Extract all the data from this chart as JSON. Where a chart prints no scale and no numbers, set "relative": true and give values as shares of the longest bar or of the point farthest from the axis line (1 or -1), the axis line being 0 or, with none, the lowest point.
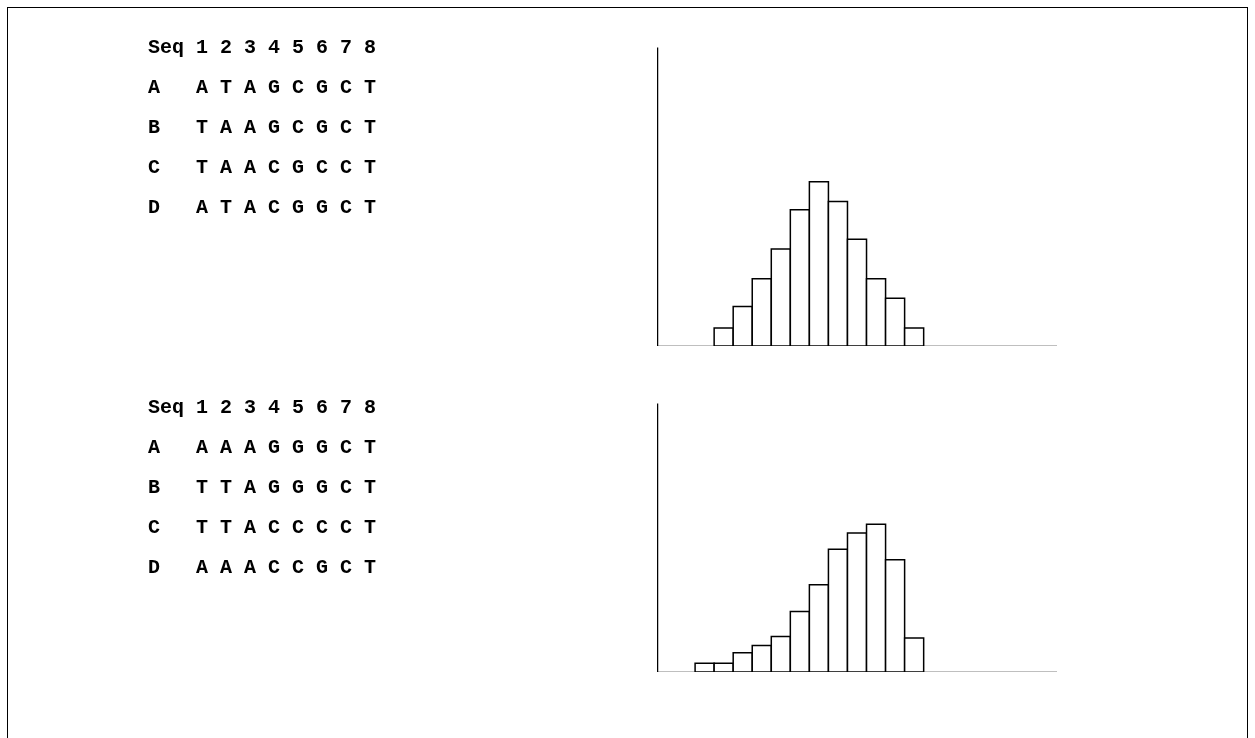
{
  "chart_data": [
    {
      "type": "other",
      "annotations": [
        "Seq 1 2 3 4 5 6 7 8",
        "A   A T A G C G C T",
        "B   T A A G C G C T",
        "C   T A A C G C C T",
        "D   A T A C G G C T"
      ]
    },
    {
      "type": "bar",
      "relative": true,
      "color": "#ffffff",
      "categories": [
        null,
        null,
        null,
        null,
        null,
        null,
        null,
        null,
        null,
        null,
        null
      ],
      "values": [
        0.11,
        0.24,
        0.41,
        0.59,
        0.83,
        1,
        0.88,
        0.65,
        0.41,
        0.29,
        0.11
      ]
    },
    {
      "type": "other",
      "annotations": [
        "Seq 1 2 3 4 5 6 7 8",
        "A   A A A G G G C T",
        "B   T T A G G G C T",
        "C   T T A C C C C T",
        "D   A A A C C G C T"
      ]
    },
    {
      "type": "bar",
      "relative": true,
      "color": "#ffffff",
      "categories": [
        null,
        null,
        null,
        null,
        null,
        null,
        null,
        null,
        null,
        null,
        null,
        null
      ],
      "values": [
        0.06,
        0.06,
        0.13,
        0.18,
        0.24,
        0.41,
        0.59,
        0.83,
        0.94,
        1,
        0.76,
        0.23
      ]
    }
  ]
}
